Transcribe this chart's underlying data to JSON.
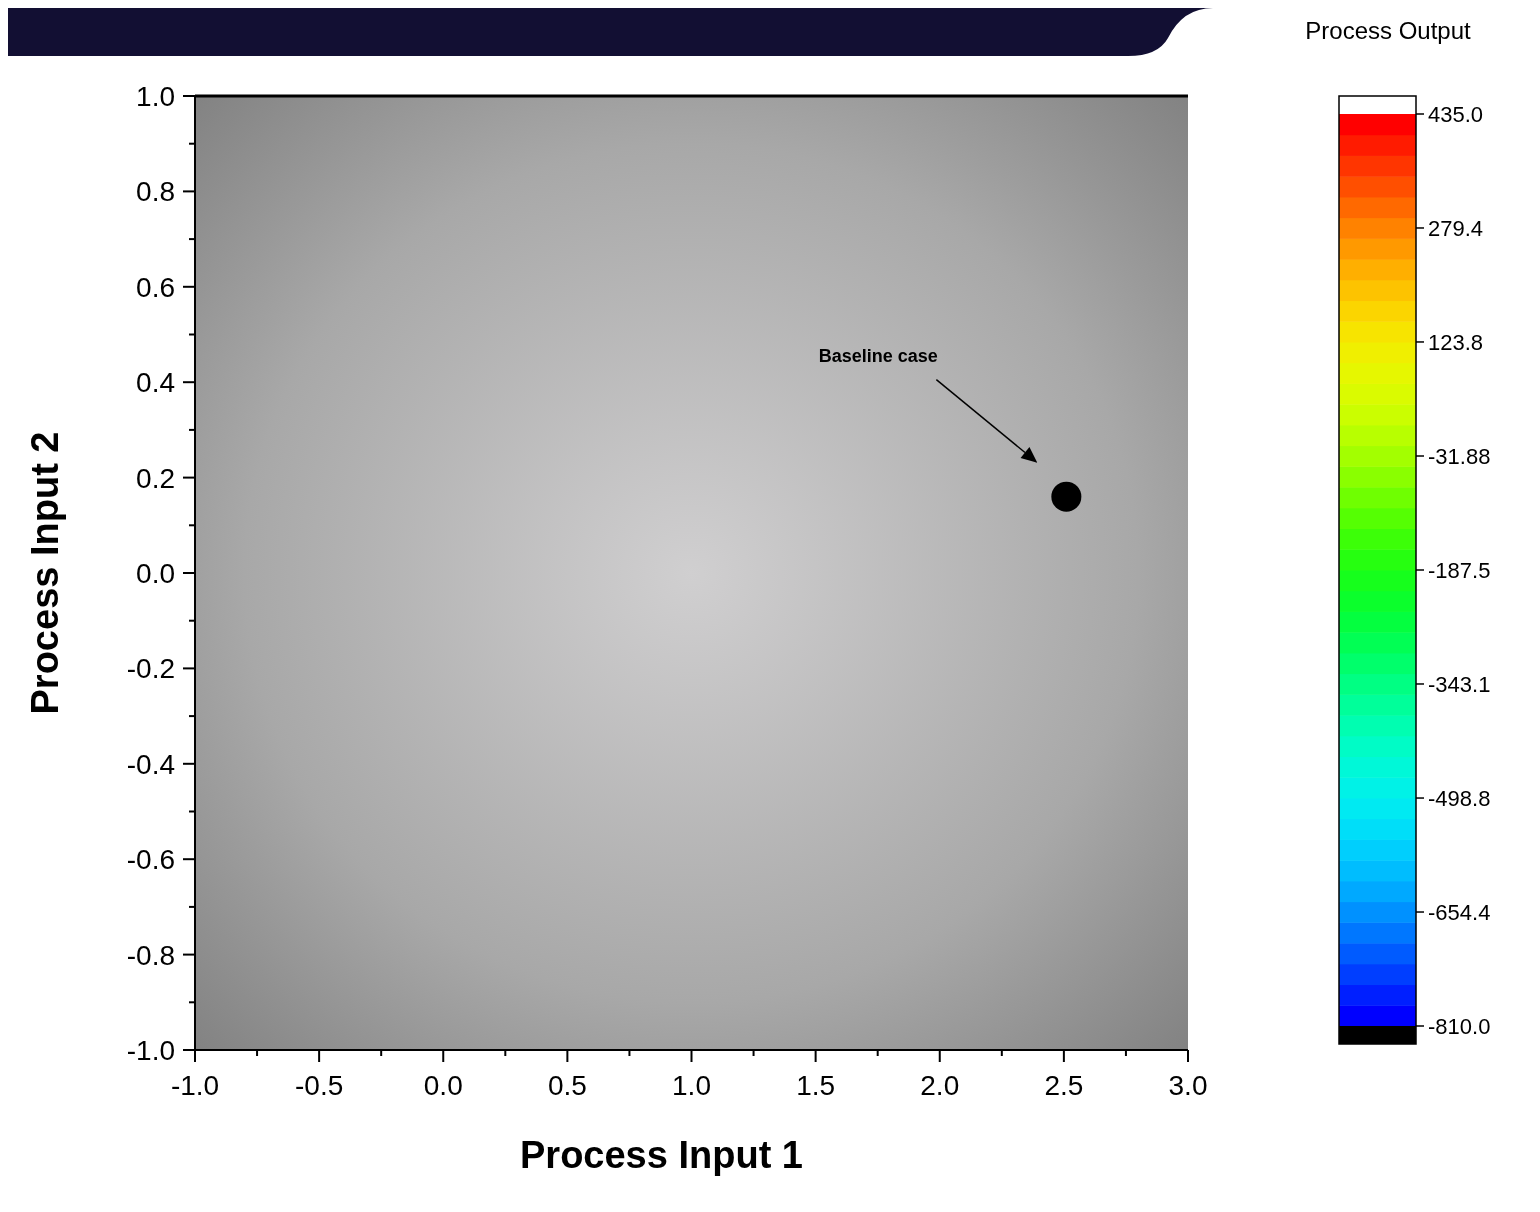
{
  "chart_data": {
    "type": "scatter",
    "xlabel": "Process Input 1",
    "ylabel": "Process Input 2",
    "clabel": "Process Output",
    "xlim": [
      -1,
      3
    ],
    "ylim": [
      -1,
      1
    ],
    "xticks": [
      {
        "value": -1,
        "label": "-1.0"
      },
      {
        "value": -0.5,
        "label": "-0.5"
      },
      {
        "value": 0,
        "label": "0.0"
      },
      {
        "value": 0.5,
        "label": "0.5"
      },
      {
        "value": 1,
        "label": "1.0"
      },
      {
        "value": 1.5,
        "label": "1.5"
      },
      {
        "value": 2,
        "label": "2.0"
      },
      {
        "value": 2.5,
        "label": "2.5"
      },
      {
        "value": 3,
        "label": "3.0"
      }
    ],
    "yticks": [
      {
        "value": -1,
        "label": "-1.0"
      },
      {
        "value": -0.8,
        "label": "-0.8"
      },
      {
        "value": -0.6,
        "label": "-0.6"
      },
      {
        "value": -0.4,
        "label": "-0.4"
      },
      {
        "value": -0.2,
        "label": "-0.2"
      },
      {
        "value": 0,
        "label": "0.0"
      },
      {
        "value": 0.2,
        "label": "0.2"
      },
      {
        "value": 0.4,
        "label": "0.4"
      },
      {
        "value": 0.6,
        "label": "0.6"
      },
      {
        "value": 0.8,
        "label": "0.8"
      },
      {
        "value": 1,
        "label": "1.0"
      }
    ],
    "clim": [
      -810,
      435
    ],
    "cticks": [
      {
        "value": 435,
        "label": "435.0"
      },
      279.4,
      123.8,
      -31.88,
      -187.5,
      -343.1,
      -498.8,
      -654.4,
      {
        "value": -810,
        "label": "-810.0"
      }
    ],
    "series": [
      {
        "color": "#000000",
        "x": [
          2.51
        ],
        "values": [
          0.16
        ]
      }
    ],
    "marker": "circle",
    "annotations": [
      "Baseline case"
    ]
  }
}
